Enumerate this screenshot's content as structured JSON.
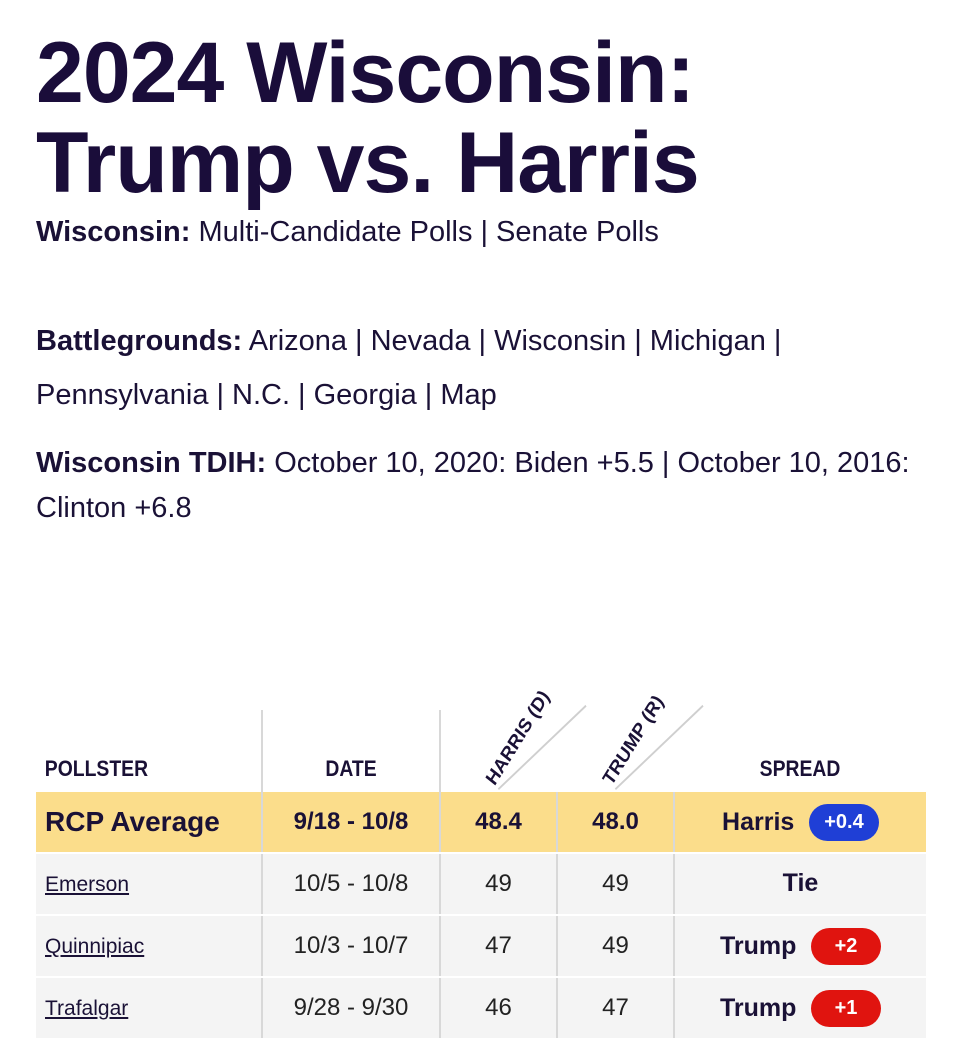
{
  "header": {
    "title_line1": "2024 Wisconsin:",
    "title_line2": "Trump vs. Harris"
  },
  "wisconsin_nav": {
    "label": "Wisconsin:",
    "links": [
      "Multi-Candidate Polls",
      "Senate Polls"
    ]
  },
  "battlegrounds": {
    "label": "Battlegrounds:",
    "links": [
      "Arizona",
      "Nevada",
      "Wisconsin",
      "Michigan",
      "Pennsylvania",
      "N.C.",
      "Georgia",
      "Map"
    ]
  },
  "tdih": {
    "label": "Wisconsin TDIH:",
    "item1": "October 10, 2020: Biden +5.5",
    "item2": "October 10, 2016: Clinton +6.8"
  },
  "table": {
    "headers": {
      "pollster": "POLLSTER",
      "date": "DATE",
      "harris": "HARRIS (D)",
      "trump": "TRUMP (R)",
      "spread": "SPREAD"
    },
    "average": {
      "pollster": "RCP Average",
      "date": "9/18 - 10/8",
      "harris": "48.4",
      "trump": "48.0",
      "spread_winner": "Harris",
      "spread_value": "+0.4",
      "spread_color": "#1f3fd6"
    },
    "rows": [
      {
        "pollster": "Emerson",
        "date": "10/5 - 10/8",
        "harris": "49",
        "trump": "49",
        "spread_winner": "Tie",
        "spread_value": "",
        "spread_color": ""
      },
      {
        "pollster": "Quinnipiac",
        "date": "10/3 - 10/7",
        "harris": "47",
        "trump": "49",
        "spread_winner": "Trump",
        "spread_value": "+2",
        "spread_color": "#e0140f"
      },
      {
        "pollster": "Trafalgar",
        "date": "9/28 - 9/30",
        "harris": "46",
        "trump": "47",
        "spread_winner": "Trump",
        "spread_value": "+1",
        "spread_color": "#e0140f"
      }
    ]
  },
  "colors": {
    "title": "#1a0d3a",
    "average_row": "#fbdd8b",
    "democrat_badge": "#1f3fd6",
    "republican_badge": "#e0140f"
  }
}
